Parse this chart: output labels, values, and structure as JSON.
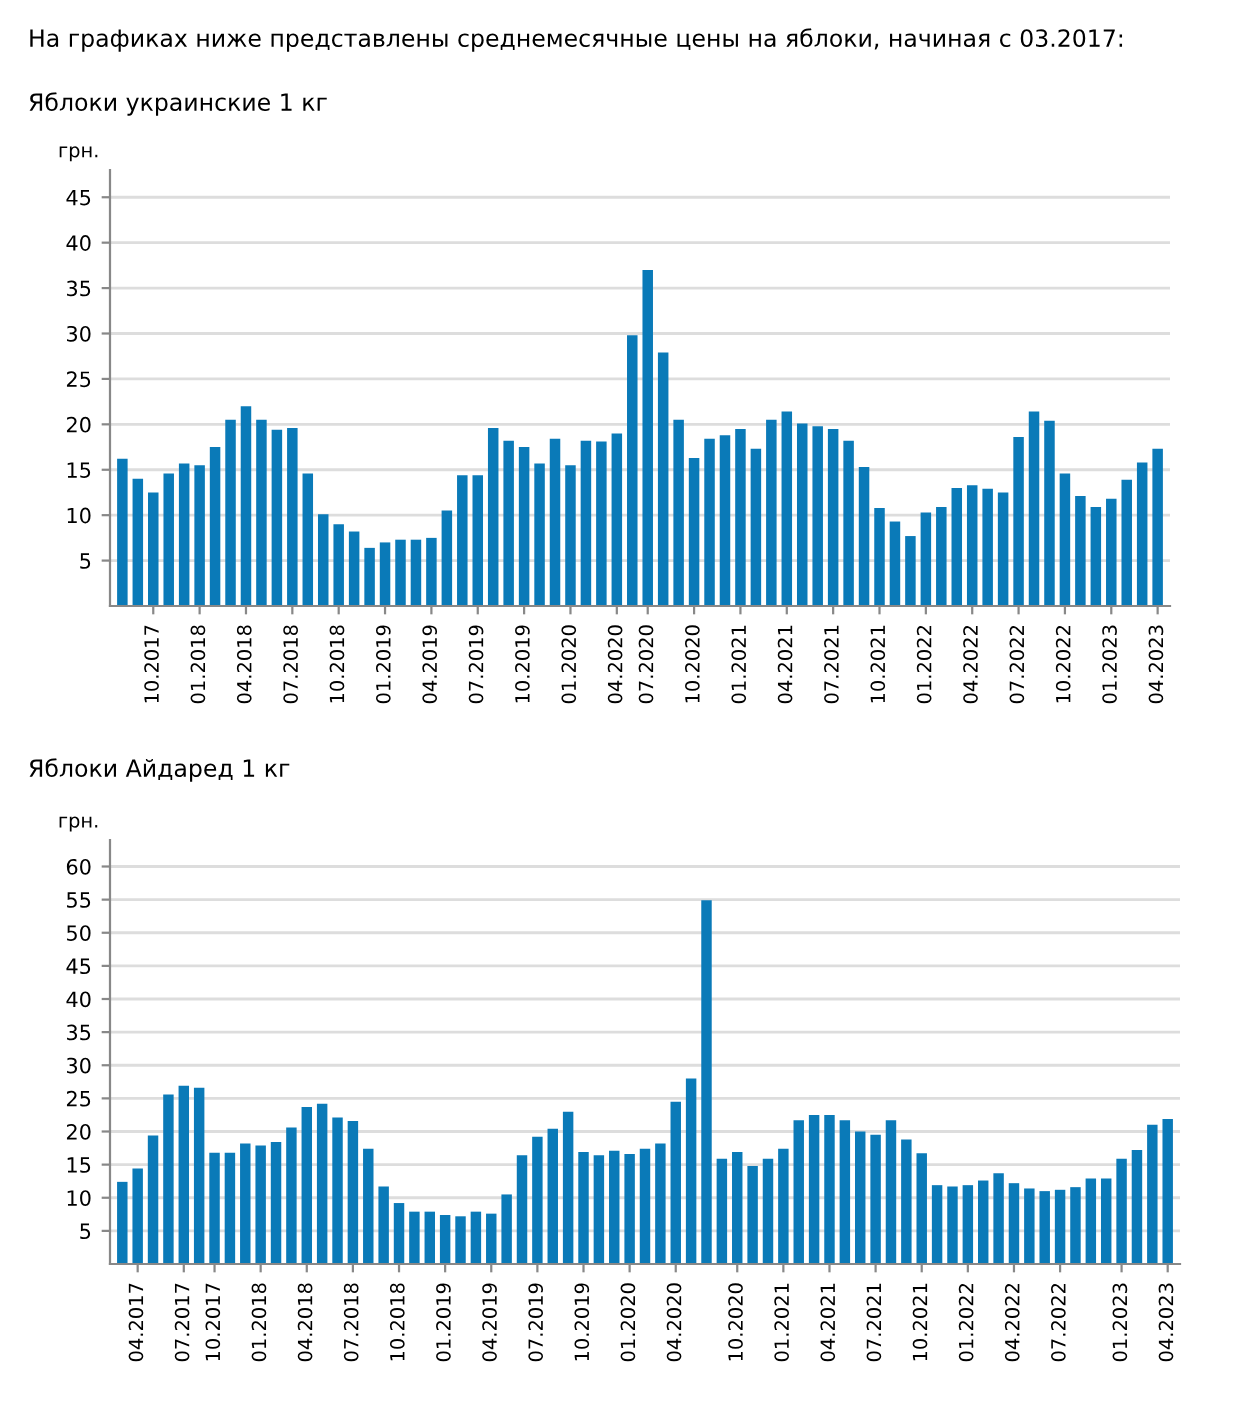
{
  "chart_data": [
    {
      "type": "bar",
      "title": "Яблоки украинские 1 кг",
      "ylabel": "грн.",
      "annotations": [
        "На графиках ниже представлены среднемесячные цены на яблоки, начиная с 03.2017:"
      ],
      "categories": [
        null,
        null,
        "10.2017",
        null,
        null,
        "01.2018",
        null,
        null,
        "04.2018",
        null,
        null,
        "07.2018",
        null,
        null,
        "10.2018",
        null,
        null,
        "01.2019",
        null,
        null,
        "04.2019",
        null,
        null,
        "07.2019",
        null,
        null,
        "10.2019",
        null,
        null,
        "01.2020",
        null,
        null,
        "04.2020",
        null,
        "07.2020",
        null,
        null,
        "10.2020",
        null,
        null,
        "01.2021",
        null,
        null,
        "04.2021",
        null,
        null,
        "07.2021",
        null,
        null,
        "10.2021",
        null,
        null,
        "01.2022",
        null,
        null,
        "04.2022",
        null,
        null,
        "07.2022",
        null,
        null,
        "10.2022",
        null,
        null,
        "01.2023",
        null,
        null,
        "04.2023"
      ],
      "values": [
        16.2,
        14,
        12.5,
        14.6,
        15.7,
        15.5,
        17.5,
        20.5,
        22,
        20.5,
        19.4,
        19.6,
        14.6,
        10.1,
        9,
        8.2,
        6.4,
        7,
        7.3,
        7.3,
        7.5,
        10.5,
        14.4,
        14.4,
        19.6,
        18.2,
        17.5,
        15.7,
        18.4,
        15.5,
        18.2,
        18.1,
        19,
        29.8,
        37,
        27.9,
        20.5,
        16.3,
        18.4,
        18.8,
        19.5,
        17.3,
        20.5,
        21.4,
        20.1,
        19.8,
        19.5,
        18.2,
        15.3,
        10.8,
        9.3,
        7.7,
        10.3,
        10.9,
        13,
        13.3,
        12.9,
        12.5,
        18.6,
        21.4,
        20.4,
        14.6,
        12.1,
        10.9,
        11.8,
        13.9,
        15.8,
        17.3
      ],
      "color": "#0a7ab8",
      "ylim": [
        0,
        48
      ],
      "yticks": [
        5,
        10,
        15,
        20,
        25,
        30,
        35,
        40,
        45
      ],
      "grid": "y"
    },
    {
      "type": "bar",
      "title": "Яблоки Айдаред 1 кг",
      "ylabel": "грн.",
      "categories": [
        null,
        "04.2017",
        null,
        null,
        "07.2017",
        null,
        "10.2017",
        null,
        null,
        "01.2018",
        null,
        null,
        "04.2018",
        null,
        null,
        "07.2018",
        null,
        null,
        "10.2018",
        null,
        null,
        "01.2019",
        null,
        null,
        "04.2019",
        null,
        null,
        "07.2019",
        null,
        null,
        "10.2019",
        null,
        null,
        "01.2020",
        null,
        null,
        "04.2020",
        null,
        null,
        null,
        "10.2020",
        null,
        null,
        "01.2021",
        null,
        null,
        "04.2021",
        null,
        null,
        "07.2021",
        null,
        null,
        "10.2021",
        null,
        null,
        "01.2022",
        null,
        null,
        "04.2022",
        null,
        null,
        "07.2022",
        null,
        null,
        null,
        "01.2023",
        null,
        null,
        "04.2023"
      ],
      "values": [
        12.4,
        14.4,
        19.4,
        25.6,
        26.9,
        26.6,
        16.8,
        16.8,
        18.2,
        17.9,
        18.4,
        20.6,
        23.7,
        24.2,
        22.1,
        21.6,
        17.4,
        11.7,
        9.2,
        7.9,
        7.9,
        7.4,
        7.2,
        7.9,
        7.6,
        10.5,
        16.4,
        19.2,
        20.4,
        23,
        16.9,
        16.4,
        17.1,
        16.6,
        17.4,
        18.2,
        24.5,
        28,
        54.9,
        15.9,
        16.9,
        14.8,
        15.9,
        17.4,
        21.7,
        22.5,
        22.5,
        21.7,
        20,
        19.5,
        21.7,
        18.8,
        16.7,
        11.9,
        11.7,
        11.9,
        12.6,
        13.7,
        12.2,
        11.4,
        11,
        11.2,
        11.6,
        12.9,
        12.9,
        15.9,
        17.2,
        21,
        21.9
      ],
      "color": "#0a7ab8",
      "ylim": [
        0,
        64
      ],
      "yticks": [
        5,
        10,
        15,
        20,
        25,
        30,
        35,
        40,
        45,
        50,
        55,
        60
      ],
      "grid": "y"
    }
  ]
}
